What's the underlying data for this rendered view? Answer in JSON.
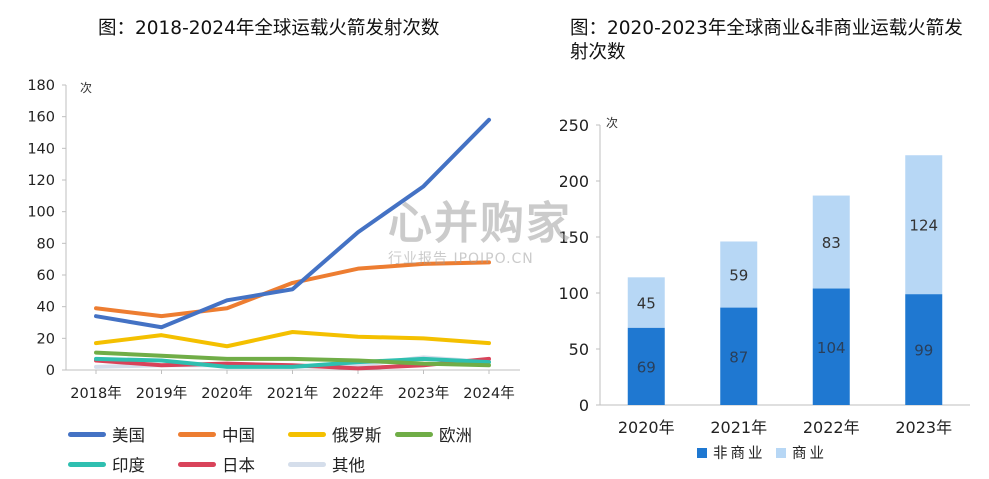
{
  "chart_data": [
    {
      "type": "line",
      "title": "图：2018-2024年全球运载火箭发射次数",
      "ylabel": "次",
      "ylim": [
        0,
        180
      ],
      "yticks": [
        0,
        20,
        40,
        60,
        80,
        100,
        120,
        140,
        160,
        180
      ],
      "categories": [
        "2018年",
        "2019年",
        "2020年",
        "2021年",
        "2022年",
        "2023年",
        "2024年"
      ],
      "grid": false,
      "legend_position": "bottom",
      "series": [
        {
          "name": "美国",
          "color": "#4472C4",
          "values": [
            34,
            27,
            44,
            51,
            87,
            116,
            158
          ]
        },
        {
          "name": "中国",
          "color": "#ED7D31",
          "values": [
            39,
            34,
            39,
            55,
            64,
            67,
            68
          ]
        },
        {
          "name": "俄罗斯",
          "color": "#F4C000",
          "values": [
            17,
            22,
            15,
            24,
            21,
            20,
            17
          ]
        },
        {
          "name": "欧洲",
          "color": "#70AD47",
          "values": [
            11,
            9,
            7,
            7,
            6,
            4,
            3
          ]
        },
        {
          "name": "印度",
          "color": "#2FBFB0",
          "values": [
            7,
            6,
            2,
            2,
            5,
            7,
            5
          ]
        },
        {
          "name": "日本",
          "color": "#D9435A",
          "values": [
            6,
            3,
            4,
            3,
            1,
            3,
            7
          ]
        },
        {
          "name": "其他",
          "color": "#D5DEEB",
          "values": [
            2,
            3,
            3,
            2,
            3,
            8,
            5
          ]
        }
      ]
    },
    {
      "type": "bar",
      "stacked": true,
      "title": "图：2020-2023年全球商业&非商业运载火箭发射次数",
      "ylabel": "次",
      "ylim": [
        0,
        250
      ],
      "yticks": [
        0,
        50,
        100,
        150,
        200,
        250
      ],
      "categories": [
        "2020年",
        "2021年",
        "2022年",
        "2023年"
      ],
      "grid": false,
      "legend_position": "bottom",
      "series": [
        {
          "name": "非商业",
          "color": "#1F78D1",
          "label_color": "#2a3f5a",
          "values": [
            69,
            87,
            104,
            99
          ]
        },
        {
          "name": "商业",
          "color": "#B7D7F5",
          "label_color": "#333333",
          "values": [
            45,
            59,
            83,
            124
          ]
        }
      ]
    }
  ],
  "watermark": {
    "main": "心并购家",
    "sub": "行业报告 IPOIPO.CN"
  }
}
